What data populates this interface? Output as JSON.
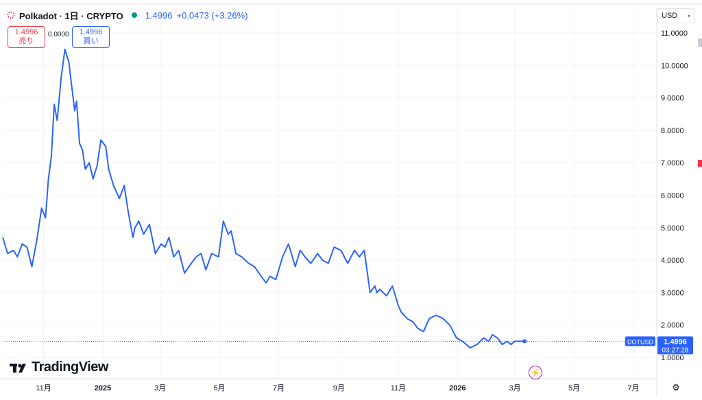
{
  "header": {
    "symbol": "Polkadot · 1日 · CRYPTO",
    "last_price": "1.4996",
    "change": "+0.0473 (+3.26%)"
  },
  "order_panel": {
    "sell_price": "1.4996",
    "sell_label": "売り",
    "spread": "0.0000",
    "buy_price": "1.4996",
    "buy_label": "買い"
  },
  "currency": "USD",
  "brand": "TradingView",
  "price_tag": {
    "symbol": "DOTUSD",
    "value": "1.4996",
    "countdown": "03:27:28"
  },
  "colors": {
    "line": "#2962ff",
    "sell": "#f23645",
    "buy": "#2962ff",
    "grid": "#f0f3fa",
    "accent_icon": "#9c27b0"
  },
  "chart_data": {
    "type": "line",
    "title": "Polkadot · 1日 · CRYPTO",
    "x_ticks": [
      "11月",
      "2025",
      "3月",
      "5月",
      "7月",
      "9月",
      "11月",
      "2026",
      "3月",
      "5月",
      "7月"
    ],
    "y_ticks": [
      "11.0000",
      "10.0000",
      "9.0000",
      "8.0000",
      "7.0000",
      "6.0000",
      "5.0000",
      "4.0000",
      "3.0000",
      "2.0000",
      "1.0000"
    ],
    "ylim": [
      1.0,
      11.0
    ],
    "xlim": [
      "2024-09-20",
      "2026-07-25"
    ],
    "grid": true,
    "series": [
      {
        "x": [
          "2024-09-20",
          "2024-09-25",
          "2024-10-01",
          "2024-10-05",
          "2024-10-10",
          "2024-10-15",
          "2024-10-20",
          "2024-10-25",
          "2024-10-30",
          "2024-11-03",
          "2024-11-06",
          "2024-11-09",
          "2024-11-12",
          "2024-11-15",
          "2024-11-19",
          "2024-11-23",
          "2024-11-27",
          "2024-12-01",
          "2024-12-03",
          "2024-12-05",
          "2024-12-08",
          "2024-12-11",
          "2024-12-14",
          "2024-12-18",
          "2024-12-22",
          "2024-12-26",
          "2024-12-30",
          "2025-01-04",
          "2025-01-07",
          "2025-01-12",
          "2025-01-18",
          "2025-01-23",
          "2025-01-27",
          "2025-02-01",
          "2025-02-03",
          "2025-02-07",
          "2025-02-12",
          "2025-02-18",
          "2025-02-24",
          "2025-03-02",
          "2025-03-06",
          "2025-03-10",
          "2025-03-15",
          "2025-03-20",
          "2025-03-26",
          "2025-04-02",
          "2025-04-07",
          "2025-04-12",
          "2025-04-17",
          "2025-04-23",
          "2025-04-30",
          "2025-05-05",
          "2025-05-10",
          "2025-05-13",
          "2025-05-18",
          "2025-05-24",
          "2025-05-31",
          "2025-06-06",
          "2025-06-13",
          "2025-06-18",
          "2025-06-22",
          "2025-06-28",
          "2025-07-05",
          "2025-07-11",
          "2025-07-18",
          "2025-07-23",
          "2025-07-28",
          "2025-08-03",
          "2025-08-10",
          "2025-08-15",
          "2025-08-21",
          "2025-08-27",
          "2025-09-03",
          "2025-09-10",
          "2025-09-17",
          "2025-09-22",
          "2025-09-27",
          "2025-10-03",
          "2025-10-08",
          "2025-10-10",
          "2025-10-13",
          "2025-10-20",
          "2025-10-26",
          "2025-11-01",
          "2025-11-04",
          "2025-11-10",
          "2025-11-16",
          "2025-11-21",
          "2025-11-27",
          "2025-12-03",
          "2025-12-10",
          "2025-12-17",
          "2025-12-24",
          "2025-12-31",
          "2026-01-06",
          "2026-01-14",
          "2026-01-21",
          "2026-01-28",
          "2026-02-02",
          "2026-02-06",
          "2026-02-11",
          "2026-02-16",
          "2026-02-21",
          "2026-02-25",
          "2026-03-01",
          "2026-03-04",
          "2026-03-08",
          "2026-03-11"
        ],
        "values": [
          4.7,
          4.2,
          4.3,
          4.1,
          4.5,
          4.4,
          3.8,
          4.6,
          5.6,
          5.3,
          6.5,
          7.2,
          8.8,
          8.3,
          9.6,
          10.5,
          10.1,
          9.1,
          8.6,
          8.9,
          7.6,
          7.4,
          6.8,
          7.0,
          6.5,
          6.9,
          7.7,
          7.5,
          6.8,
          6.3,
          5.9,
          6.3,
          5.5,
          4.7,
          5.0,
          5.2,
          4.8,
          5.1,
          4.2,
          4.5,
          4.4,
          4.7,
          4.1,
          4.3,
          3.6,
          3.9,
          4.1,
          4.2,
          3.7,
          4.2,
          4.1,
          5.2,
          4.8,
          4.9,
          4.2,
          4.1,
          3.9,
          3.8,
          3.5,
          3.3,
          3.5,
          3.4,
          4.1,
          4.5,
          3.8,
          4.3,
          4.1,
          3.9,
          4.2,
          4.0,
          3.9,
          4.4,
          4.3,
          3.9,
          4.3,
          4.1,
          4.3,
          3.0,
          3.2,
          3.0,
          3.1,
          2.9,
          3.2,
          2.6,
          2.4,
          2.2,
          2.1,
          1.9,
          1.8,
          2.2,
          2.3,
          2.2,
          2.0,
          1.6,
          1.5,
          1.3,
          1.4,
          1.6,
          1.5,
          1.7,
          1.6,
          1.4,
          1.5,
          1.4,
          1.5,
          1.5,
          1.5,
          1.4996
        ]
      }
    ]
  }
}
